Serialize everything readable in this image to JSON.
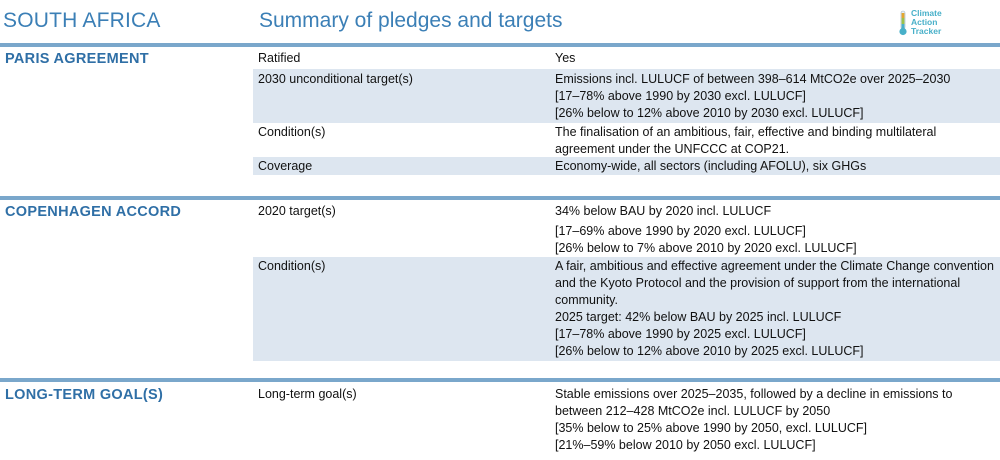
{
  "header": {
    "country": "SOUTH AFRICA",
    "subtitle": "Summary of pledges and targets",
    "logo_lines": [
      "Climate",
      "Action",
      "Tracker"
    ]
  },
  "sections": [
    {
      "title": "PARIS AGREEMENT",
      "rows": [
        {
          "label": "Ratified",
          "value": [
            "Yes"
          ]
        },
        {
          "label": "2030 unconditional target(s)",
          "value": [
            "Emissions incl. LULUCF of between 398–614 MtCO2e over 2025–2030",
            "[17–78% above 1990 by 2030 excl. LULUCF]",
            "[26% below to 12% above 2010 by 2030 excl. LULUCF]"
          ]
        },
        {
          "label": "Condition(s)",
          "value": [
            "The finalisation of an ambitious, fair, effective and binding multilateral agreement under the UNFCCC at COP21."
          ]
        },
        {
          "label": "Coverage",
          "value": [
            "Economy-wide, all sectors (including AFOLU), six GHGs"
          ]
        }
      ]
    },
    {
      "title": "COPENHAGEN ACCORD",
      "rows": [
        {
          "label": "2020 target(s)",
          "value": [
            "34% below BAU by 2020 incl. LULUCF",
            "[17–69% above 1990 by 2020 excl. LULUCF]",
            "[26% below to 7% above 2010 by 2020 excl. LULUCF]"
          ]
        },
        {
          "label": "Condition(s)",
          "value": [
            "A fair, ambitious and effective agreement under the Climate Change convention and the Kyoto Protocol and the provision of support from the international community.",
            "2025 target: 42% below BAU by 2025 incl. LULUCF",
            "[17–78% above 1990 by 2025 excl. LULUCF]",
            "[26% below to 12% above 2010 by 2025 excl. LULUCF]"
          ]
        }
      ]
    },
    {
      "title": "LONG-TERM GOAL(S)",
      "rows": [
        {
          "label": "Long-term goal(s)",
          "value": [
            "Stable emissions over 2025–2035, followed by a decline in emissions to between 212–428 MtCO2e incl. LULUCF by 2050",
            "[35% below to 25% above 1990 by 2050, excl. LULUCF]",
            "[21%–59% below 2010 by 2050 excl. LULUCF]"
          ]
        }
      ]
    }
  ]
}
